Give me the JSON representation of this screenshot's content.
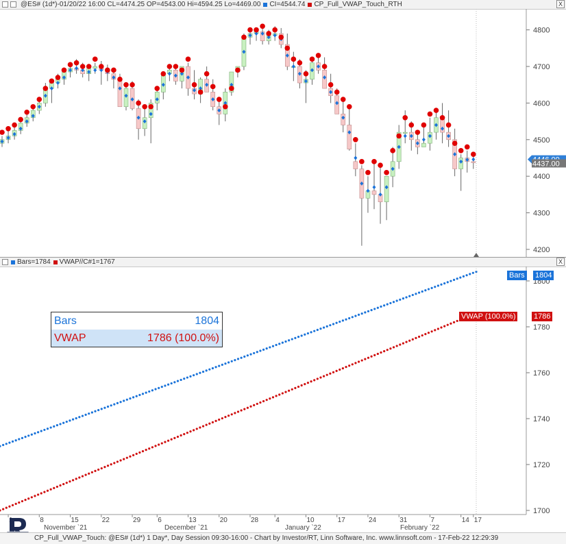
{
  "top_header": {
    "symbol_text": "@ES# (1d*)-01/20/22 16:00 CL=4474.25 OP=4543.00 Hi=4594.25 Lo=4469.00",
    "ci_text": "CI=4544.74",
    "study_text": "CP_Full_VWAP_Touch_RTH",
    "close_label": "X"
  },
  "mid_header": {
    "bars_text": "Bars=1784",
    "vwap_text": "VWAP//C#1=1767",
    "close_label": "X"
  },
  "price_axis": {
    "ticks": [
      "4800",
      "4700",
      "4600",
      "4500",
      "4400",
      "4300",
      "4200"
    ],
    "last_blue_label": "4446.00",
    "last_close_label": "4437.00"
  },
  "lower_axis": {
    "ticks": [
      "1800",
      "1780",
      "1760",
      "1740",
      "1720",
      "1700"
    ]
  },
  "date_axis": {
    "day_ticks": [
      "1",
      "8",
      "15",
      "22",
      "29",
      "6",
      "13",
      "20",
      "28",
      "4",
      "10",
      "17",
      "24",
      "31",
      "7",
      "14",
      "17"
    ],
    "months": [
      "November `21",
      "December `21",
      "January `22",
      "February `22"
    ]
  },
  "legend": {
    "rows": [
      {
        "name": "Bars",
        "value": "1804"
      },
      {
        "name": "VWAP",
        "value": "1786 (100.0%)"
      }
    ]
  },
  "tags": {
    "bars": {
      "name": "Bars",
      "value": "1804"
    },
    "vwap": {
      "name": "VWAP (100.0%)",
      "value": "1786"
    }
  },
  "footer": {
    "text": "CP_Full_VWAP_Touch: @ES# (1d*) 1 Day*, Day Session 09:30-16:00 - Chart by Investor/RT, Linn Software, Inc. www.linnsoft.com - 17-Feb-22 12:29:39"
  },
  "colors": {
    "up_candle": "#c8f0c0",
    "down_candle": "#f6c8c8",
    "touch_dot": "#e00000",
    "vwap_diamond": "#1a73d9",
    "bars_line": "#1a73d9",
    "vwap_line": "#d01010"
  },
  "chart_data": [
    {
      "type": "candlestick",
      "title": "",
      "ylim": [
        4200,
        4820
      ],
      "x": [
        "2021-10-29",
        "2021-11-01",
        "2021-11-02",
        "2021-11-03",
        "2021-11-04",
        "2021-11-05",
        "2021-11-08",
        "2021-11-09",
        "2021-11-10",
        "2021-11-11",
        "2021-11-12",
        "2021-11-15",
        "2021-11-16",
        "2021-11-17",
        "2021-11-18",
        "2021-11-19",
        "2021-11-22",
        "2021-11-23",
        "2021-11-24",
        "2021-11-26",
        "2021-11-29",
        "2021-11-30",
        "2021-12-01",
        "2021-12-02",
        "2021-12-03",
        "2021-12-06",
        "2021-12-07",
        "2021-12-08",
        "2021-12-09",
        "2021-12-10",
        "2021-12-13",
        "2021-12-14",
        "2021-12-15",
        "2021-12-16",
        "2021-12-17",
        "2021-12-20",
        "2021-12-21",
        "2021-12-22",
        "2021-12-23",
        "2021-12-27",
        "2021-12-28",
        "2021-12-29",
        "2021-12-30",
        "2021-12-31",
        "2022-01-03",
        "2022-01-04",
        "2022-01-05",
        "2022-01-06",
        "2022-01-07",
        "2022-01-10",
        "2022-01-11",
        "2022-01-12",
        "2022-01-13",
        "2022-01-14",
        "2022-01-18",
        "2022-01-19",
        "2022-01-20",
        "2022-01-21",
        "2022-01-24",
        "2022-01-25",
        "2022-01-26",
        "2022-01-27",
        "2022-01-28",
        "2022-01-31",
        "2022-02-01",
        "2022-02-02",
        "2022-02-03",
        "2022-02-04",
        "2022-02-07",
        "2022-02-08",
        "2022-02-09",
        "2022-02-10",
        "2022-02-11",
        "2022-02-14",
        "2022-02-15",
        "2022-02-16",
        "2022-02-17"
      ],
      "open": [
        4490,
        4500,
        4510,
        4525,
        4545,
        4560,
        4580,
        4600,
        4640,
        4655,
        4665,
        4685,
        4695,
        4690,
        4680,
        4695,
        4700,
        4690,
        4680,
        4665,
        4590,
        4640,
        4585,
        4530,
        4560,
        4600,
        4630,
        4680,
        4690,
        4660,
        4700,
        4640,
        4625,
        4665,
        4630,
        4590,
        4570,
        4630,
        4685,
        4700,
        4780,
        4790,
        4795,
        4770,
        4785,
        4790,
        4760,
        4700,
        4700,
        4655,
        4665,
        4710,
        4690,
        4640,
        4620,
        4570,
        4540,
        4440,
        4420,
        4340,
        4360,
        4350,
        4330,
        4400,
        4440,
        4520,
        4520,
        4500,
        4480,
        4490,
        4520,
        4560,
        4520,
        4500,
        4420,
        4450,
        4440
      ],
      "high": [
        4510,
        4525,
        4535,
        4550,
        4570,
        4590,
        4610,
        4655,
        4665,
        4680,
        4690,
        4705,
        4720,
        4710,
        4700,
        4710,
        4715,
        4705,
        4690,
        4680,
        4650,
        4660,
        4610,
        4585,
        4610,
        4640,
        4680,
        4700,
        4705,
        4700,
        4710,
        4690,
        4670,
        4700,
        4665,
        4610,
        4640,
        4685,
        4700,
        4790,
        4800,
        4800,
        4810,
        4800,
        4810,
        4805,
        4790,
        4740,
        4720,
        4690,
        4720,
        4735,
        4725,
        4680,
        4640,
        4610,
        4594,
        4490,
        4430,
        4400,
        4440,
        4430,
        4400,
        4480,
        4540,
        4580,
        4550,
        4520,
        4540,
        4560,
        4580,
        4600,
        4580,
        4530,
        4460,
        4470,
        4460
      ],
      "low": [
        4480,
        4490,
        4500,
        4515,
        4535,
        4550,
        4570,
        4590,
        4600,
        4640,
        4650,
        4670,
        4680,
        4670,
        4660,
        4680,
        4650,
        4660,
        4640,
        4590,
        4580,
        4580,
        4500,
        4510,
        4490,
        4580,
        4610,
        4660,
        4650,
        4640,
        4620,
        4610,
        4600,
        4630,
        4580,
        4540,
        4550,
        4620,
        4670,
        4690,
        4760,
        4770,
        4760,
        4760,
        4770,
        4750,
        4690,
        4660,
        4640,
        4600,
        4650,
        4680,
        4640,
        4600,
        4570,
        4520,
        4470,
        4400,
        4210,
        4300,
        4310,
        4270,
        4280,
        4370,
        4420,
        4490,
        4470,
        4460,
        4480,
        4470,
        4500,
        4490,
        4480,
        4400,
        4360,
        4410,
        4420
      ],
      "close": [
        4500,
        4510,
        4525,
        4545,
        4560,
        4580,
        4600,
        4640,
        4655,
        4665,
        4685,
        4695,
        4690,
        4680,
        4695,
        4700,
        4690,
        4680,
        4665,
        4590,
        4640,
        4585,
        4530,
        4560,
        4600,
        4630,
        4680,
        4690,
        4660,
        4700,
        4640,
        4625,
        4665,
        4630,
        4590,
        4570,
        4630,
        4685,
        4700,
        4780,
        4790,
        4795,
        4770,
        4785,
        4790,
        4760,
        4700,
        4700,
        4655,
        4665,
        4710,
        4690,
        4640,
        4620,
        4570,
        4540,
        4474,
        4420,
        4340,
        4360,
        4350,
        4330,
        4400,
        4440,
        4520,
        4520,
        4500,
        4480,
        4490,
        4520,
        4560,
        4520,
        4500,
        4420,
        4450,
        4440,
        4437
      ],
      "vwap_touch_dots": [
        4520,
        4530,
        4540,
        4555,
        4575,
        4590,
        4610,
        4640,
        4660,
        4670,
        4690,
        4705,
        4710,
        4700,
        4700,
        4720,
        4700,
        4690,
        4690,
        4665,
        4650,
        4650,
        4600,
        4590,
        4590,
        4640,
        4680,
        4700,
        4700,
        4690,
        4720,
        4650,
        4630,
        4680,
        4645,
        4610,
        4590,
        4640,
        4690,
        4780,
        4800,
        4800,
        4810,
        4790,
        4800,
        4780,
        4750,
        4720,
        4710,
        4680,
        4720,
        4730,
        4700,
        4650,
        4630,
        4610,
        4590,
        4500,
        4440,
        4410,
        4440,
        4430,
        4410,
        4470,
        4510,
        4560,
        4540,
        4520,
        4540,
        4570,
        4580,
        4560,
        4540,
        4490,
        4470,
        4480,
        4460
      ],
      "vwap_diamonds": [
        4495,
        4505,
        4515,
        4530,
        4550,
        4565,
        4590,
        4620,
        4640,
        4655,
        4670,
        4690,
        4695,
        4690,
        4685,
        4690,
        4690,
        4685,
        4670,
        4640,
        4620,
        4610,
        4560,
        4550,
        4570,
        4610,
        4650,
        4680,
        4675,
        4680,
        4670,
        4635,
        4640,
        4650,
        4610,
        4580,
        4600,
        4650,
        4690,
        4740,
        4785,
        4790,
        4790,
        4780,
        4785,
        4775,
        4730,
        4700,
        4680,
        4660,
        4690,
        4700,
        4670,
        4630,
        4600,
        4560,
        4520,
        4450,
        4380,
        4360,
        4370,
        4350,
        4370,
        4420,
        4480,
        4510,
        4510,
        4490,
        4500,
        4510,
        4540,
        4530,
        4510,
        4460,
        4440,
        4445,
        4446
      ]
    },
    {
      "type": "line",
      "title": "",
      "ylim": [
        1698,
        1804
      ],
      "x": [
        "2021-10-29",
        "2022-02-17"
      ],
      "series": [
        {
          "name": "Bars",
          "values": [
            1728,
            1804
          ]
        },
        {
          "name": "VWAP",
          "values": [
            1700,
            1786
          ]
        }
      ]
    }
  ]
}
